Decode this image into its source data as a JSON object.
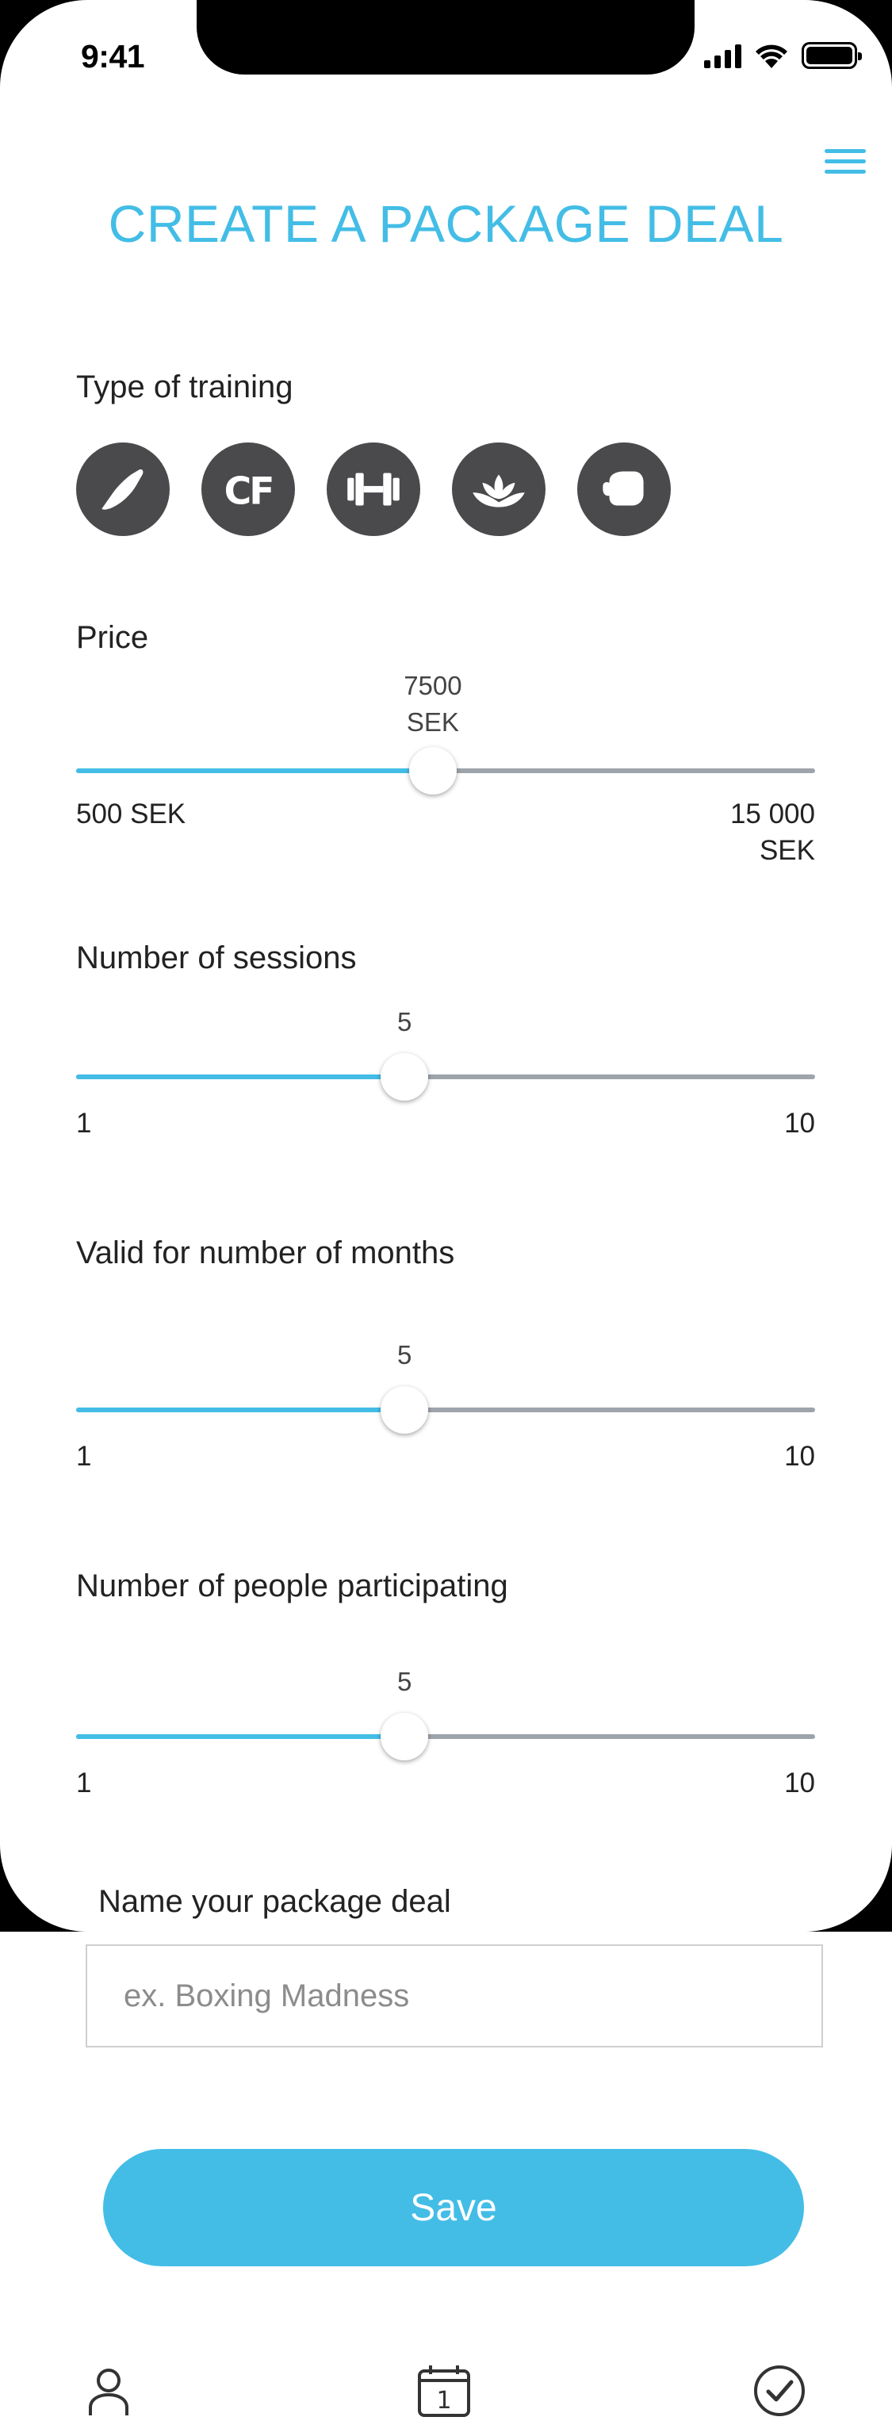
{
  "status_bar": {
    "time": "9:41"
  },
  "page": {
    "title": "CREATE A PACKAGE DEAL"
  },
  "training": {
    "label": "Type of training",
    "types": [
      "running-shoe-icon",
      "crossfit-icon",
      "dumbbell-icon",
      "lotus-icon",
      "boxing-glove-icon"
    ]
  },
  "price": {
    "label": "Price",
    "value_line1": "7500",
    "value_line2": "SEK",
    "value": 7500,
    "min": 500,
    "max": 15000,
    "min_label": "500 SEK",
    "max_label_line1": "15 000",
    "max_label_line2": "SEK"
  },
  "sessions": {
    "label": "Number of sessions",
    "value": 5,
    "value_text": "5",
    "min": 1,
    "max": 10,
    "min_label": "1",
    "max_label": "10"
  },
  "months": {
    "label": "Valid for number of months",
    "value": 5,
    "value_text": "5",
    "min": 1,
    "max": 10,
    "min_label": "1",
    "max_label": "10"
  },
  "people": {
    "label": "Number of people participating",
    "value": 5,
    "value_text": "5",
    "min": 1,
    "max": 10,
    "min_label": "1",
    "max_label": "10"
  },
  "package_name": {
    "label": "Name your package deal",
    "placeholder": "ex. Boxing Madness",
    "value": ""
  },
  "save": {
    "label": "Save"
  },
  "tab_bar": {
    "items": [
      "profile-icon",
      "calendar-icon",
      "checkmark-icon"
    ],
    "calendar_day": "1"
  },
  "colors": {
    "accent": "#43bde6",
    "icon_bg": "#4a4a4d",
    "track": "#9ea4ab"
  }
}
